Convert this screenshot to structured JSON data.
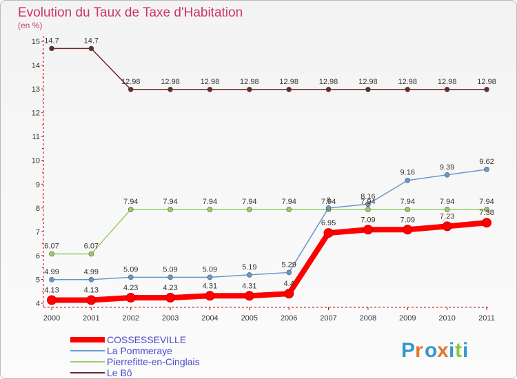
{
  "chart_data": {
    "type": "line",
    "title": "Evolution du Taux de Taxe d'Habitation",
    "subtitle": "(en %)",
    "x": [
      "2000",
      "2001",
      "2002",
      "2003",
      "2004",
      "2005",
      "2006",
      "2007",
      "2008",
      "2009",
      "2010",
      "2011"
    ],
    "ylim": [
      4,
      15
    ],
    "yticks": [
      "4",
      "5",
      "6",
      "7",
      "8",
      "9",
      "10",
      "11",
      "12",
      "13",
      "14",
      "15"
    ],
    "grid": false,
    "legend_position": "bottom-left",
    "series": [
      {
        "name": "Le Bô",
        "color": "#6b2a2a",
        "values": [
          14.7,
          14.7,
          12.98,
          12.98,
          12.98,
          12.98,
          12.98,
          12.98,
          12.98,
          12.98,
          12.98,
          12.98
        ],
        "labels": [
          "14.7",
          "14.7",
          "12.98",
          "12.98",
          "12.98",
          "12.98",
          "12.98",
          "12.98",
          "12.98",
          "12.98",
          "12.98",
          "12.98"
        ]
      },
      {
        "name": "Pierrefitte-en-Cinglais",
        "color": "#99cc66",
        "values": [
          6.07,
          6.07,
          7.94,
          7.94,
          7.94,
          7.94,
          7.94,
          7.94,
          7.94,
          7.94,
          7.94,
          7.94
        ],
        "labels": [
          "6.07",
          "6.07",
          "7.94",
          "7.94",
          "7.94",
          "7.94",
          "7.94",
          "7.94",
          "7.94",
          "7.94",
          "7.94",
          "7.94"
        ]
      },
      {
        "name": "La Pommeraye",
        "color": "#6699cc",
        "values": [
          4.99,
          4.99,
          5.09,
          5.09,
          5.09,
          5.19,
          5.29,
          8.0,
          8.16,
          9.16,
          9.39,
          9.62
        ],
        "labels": [
          "4.99",
          "4.99",
          "5.09",
          "5.09",
          "5.09",
          "5.19",
          "5.29",
          "8",
          "8.16",
          "9.16",
          "9.39",
          "9.62"
        ]
      },
      {
        "name": "COSSESSEVILLE",
        "color": "#ff0000",
        "values": [
          4.13,
          4.13,
          4.23,
          4.23,
          4.31,
          4.31,
          4.4,
          6.95,
          7.09,
          7.09,
          7.23,
          7.38
        ],
        "labels": [
          "4.13",
          "4.13",
          "4.23",
          "4.23",
          "4.31",
          "4.31",
          "4.4",
          "6.95",
          "7.09",
          "7.09",
          "7.23",
          "7.38"
        ]
      }
    ],
    "legend": [
      "COSSESSEVILLE",
      "La Pommeraye",
      "Pierrefitte-en-Cinglais",
      "Le Bô"
    ]
  },
  "legend_colors": [
    "#ff0000",
    "#6699cc",
    "#99cc66",
    "#6b2a2a"
  ],
  "logo": {
    "text": "Proxiti",
    "letters": [
      "P",
      "r",
      "o",
      "x",
      "i",
      "t",
      "i"
    ],
    "colors": [
      "#3399cc",
      "#e07a2a",
      "#3399cc",
      "#e07a2a",
      "#3399cc",
      "#8cc63f",
      "#3399cc"
    ]
  }
}
